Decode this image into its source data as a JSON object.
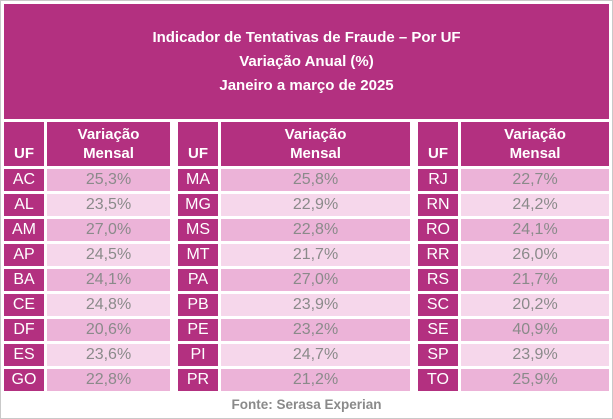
{
  "title": {
    "line1": "Indicador de Tentativas de Fraude – Por UF",
    "line2": "Variação Anual (%)",
    "line3": "Janeiro a março de 2025"
  },
  "table": {
    "uf_header": "UF",
    "value_header": "Variação\nMensal",
    "groups": [
      {
        "rows": [
          {
            "uf": "AC",
            "value": "25,3%"
          },
          {
            "uf": "AL",
            "value": "23,5%"
          },
          {
            "uf": "AM",
            "value": "27,0%"
          },
          {
            "uf": "AP",
            "value": "24,5%"
          },
          {
            "uf": "BA",
            "value": "24,1%"
          },
          {
            "uf": "CE",
            "value": "24,8%"
          },
          {
            "uf": "DF",
            "value": "20,6%"
          },
          {
            "uf": "ES",
            "value": "23,6%"
          },
          {
            "uf": "GO",
            "value": "22,8%"
          }
        ]
      },
      {
        "rows": [
          {
            "uf": "MA",
            "value": "25,8%"
          },
          {
            "uf": "MG",
            "value": "22,9%"
          },
          {
            "uf": "MS",
            "value": "22,8%"
          },
          {
            "uf": "MT",
            "value": "21,7%"
          },
          {
            "uf": "PA",
            "value": "27,0%"
          },
          {
            "uf": "PB",
            "value": "23,9%"
          },
          {
            "uf": "PE",
            "value": "23,2%"
          },
          {
            "uf": "PI",
            "value": "24,7%"
          },
          {
            "uf": "PR",
            "value": "21,2%"
          }
        ]
      },
      {
        "rows": [
          {
            "uf": "RJ",
            "value": "22,7%"
          },
          {
            "uf": "RN",
            "value": "24,2%"
          },
          {
            "uf": "RO",
            "value": "24,1%"
          },
          {
            "uf": "RR",
            "value": "26,0%"
          },
          {
            "uf": "RS",
            "value": "21,7%"
          },
          {
            "uf": "SC",
            "value": "20,2%"
          },
          {
            "uf": "SE",
            "value": "40,9%"
          },
          {
            "uf": "SP",
            "value": "23,9%"
          },
          {
            "uf": "TO",
            "value": "25,9%"
          }
        ]
      }
    ]
  },
  "footer": {
    "source": "Fonte: Serasa Experian"
  },
  "colors": {
    "magenta": "#b33080",
    "row_dark_pink": "#ecb3d8",
    "row_light_pink": "#f6d7eb",
    "value_text_gray": "#8a8a8a",
    "outer_border": "#c9c9c9"
  },
  "chart_data": {
    "type": "table",
    "title": "Indicador de Tentativas de Fraude – Por UF",
    "subtitle": "Variação Anual (%)",
    "period": "Janeiro a março de 2025",
    "columns": [
      "UF",
      "Variação Mensal"
    ],
    "rows": [
      [
        "AC",
        "25,3%"
      ],
      [
        "AL",
        "23,5%"
      ],
      [
        "AM",
        "27,0%"
      ],
      [
        "AP",
        "24,5%"
      ],
      [
        "BA",
        "24,1%"
      ],
      [
        "CE",
        "24,8%"
      ],
      [
        "DF",
        "20,6%"
      ],
      [
        "ES",
        "23,6%"
      ],
      [
        "GO",
        "22,8%"
      ],
      [
        "MA",
        "25,8%"
      ],
      [
        "MG",
        "22,9%"
      ],
      [
        "MS",
        "22,8%"
      ],
      [
        "MT",
        "21,7%"
      ],
      [
        "PA",
        "27,0%"
      ],
      [
        "PB",
        "23,9%"
      ],
      [
        "PE",
        "23,2%"
      ],
      [
        "PI",
        "24,7%"
      ],
      [
        "PR",
        "21,2%"
      ],
      [
        "RJ",
        "22,7%"
      ],
      [
        "RN",
        "24,2%"
      ],
      [
        "RO",
        "24,1%"
      ],
      [
        "RR",
        "26,0%"
      ],
      [
        "RS",
        "21,7%"
      ],
      [
        "SC",
        "20,2%"
      ],
      [
        "SE",
        "40,9%"
      ],
      [
        "SP",
        "23,9%"
      ],
      [
        "TO",
        "25,9%"
      ]
    ],
    "source": "Fonte: Serasa Experian",
    "layout": "three side-by-side UF/value column groups, zebra-striped pink rows"
  }
}
